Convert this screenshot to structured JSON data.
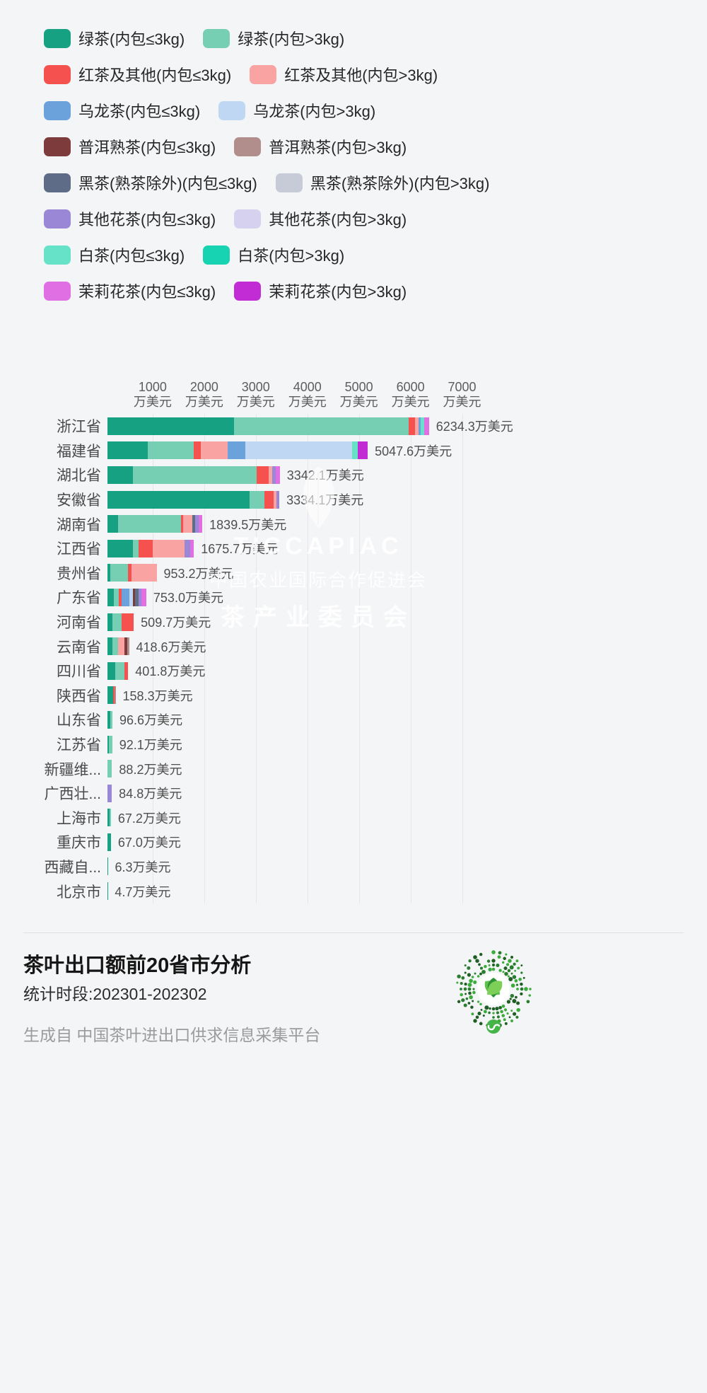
{
  "page": {
    "background": "#f4f5f7"
  },
  "legend": {
    "items": [
      {
        "key": "green_small",
        "label": "绿茶(内包≤3kg)",
        "color": "#15a182"
      },
      {
        "key": "green_large",
        "label": "绿茶(内包>3kg)",
        "color": "#76cfb3"
      },
      {
        "key": "red_small",
        "label": "红茶及其他(内包≤3kg)",
        "color": "#f5524f"
      },
      {
        "key": "red_large",
        "label": "红茶及其他(内包>3kg)",
        "color": "#f9a3a2"
      },
      {
        "key": "oolong_small",
        "label": "乌龙茶(内包≤3kg)",
        "color": "#6ca2dc"
      },
      {
        "key": "oolong_large",
        "label": "乌龙茶(内包>3kg)",
        "color": "#bfd7f3"
      },
      {
        "key": "puer_small",
        "label": "普洱熟茶(内包≤3kg)",
        "color": "#7d3b3c"
      },
      {
        "key": "puer_large",
        "label": "普洱熟茶(内包>3kg)",
        "color": "#b18e8c"
      },
      {
        "key": "dark_small",
        "label": "黑茶(熟茶除外)(内包≤3kg)",
        "color": "#5f6c87"
      },
      {
        "key": "dark_large",
        "label": "黑茶(熟茶除外)(内包>3kg)",
        "color": "#c7cbd8"
      },
      {
        "key": "flower_small",
        "label": "其他花茶(内包≤3kg)",
        "color": "#9a87d6"
      },
      {
        "key": "flower_large",
        "label": "其他花茶(内包>3kg)",
        "color": "#d6d1ef"
      },
      {
        "key": "white_small",
        "label": "白茶(内包≤3kg)",
        "color": "#66e2c8"
      },
      {
        "key": "white_large",
        "label": "白茶(内包>3kg)",
        "color": "#17d3b2"
      },
      {
        "key": "jasmine_small",
        "label": "茉莉花茶(内包≤3kg)",
        "color": "#e06fe3"
      },
      {
        "key": "jasmine_large",
        "label": "茉莉花茶(内包>3kg)",
        "color": "#c22cd5"
      }
    ]
  },
  "chart_data": {
    "type": "bar",
    "orientation": "horizontal",
    "stacked": true,
    "unit": "万美元",
    "legend_position": "top",
    "grid": true,
    "x_axis": {
      "position": "top",
      "max": 7500,
      "tick_values": [
        1000,
        2000,
        3000,
        4000,
        5000,
        6000,
        7000
      ],
      "tick_suffix": "万美元"
    },
    "rows": [
      {
        "name": "浙江省",
        "total": 6234.3,
        "label": "6234.3万美元",
        "segments": {
          "green_small": 2450,
          "green_large": 3390,
          "red_small": 120,
          "red_large": 70,
          "oolong_small": 40,
          "white_small": 70,
          "jasmine_small": 94.3
        }
      },
      {
        "name": "福建省",
        "total": 5047.6,
        "label": "5047.6万美元",
        "segments": {
          "green_small": 780,
          "green_large": 890,
          "red_small": 140,
          "red_large": 520,
          "oolong_small": 340,
          "oolong_large": 2080,
          "white_small": 100,
          "jasmine_large": 197.6
        }
      },
      {
        "name": "湖北省",
        "total": 3342.1,
        "label": "3342.1万美元",
        "segments": {
          "green_small": 500,
          "green_large": 2400,
          "red_small": 230,
          "red_large": 60,
          "flower_small": 80,
          "jasmine_small": 72.1
        }
      },
      {
        "name": "安徽省",
        "total": 3334.1,
        "label": "3334.1万美元",
        "segments": {
          "green_small": 2760,
          "green_large": 280,
          "red_small": 180,
          "red_large": 60,
          "flower_small": 54.1
        }
      },
      {
        "name": "湖南省",
        "total": 1839.5,
        "label": "1839.5万美元",
        "segments": {
          "green_small": 200,
          "green_large": 1230,
          "red_small": 40,
          "red_large": 170,
          "dark_small": 60,
          "flower_small": 70,
          "jasmine_small": 69.5
        }
      },
      {
        "name": "江西省",
        "total": 1675.7,
        "label": "1675.7万美元",
        "segments": {
          "green_small": 500,
          "green_large": 100,
          "red_small": 280,
          "red_large": 620,
          "flower_small": 100,
          "jasmine_small": 75.7
        }
      },
      {
        "name": "贵州省",
        "total": 953.2,
        "label": "953.2万美元",
        "segments": {
          "green_small": 60,
          "green_large": 340,
          "red_small": 60,
          "red_large": 493.2
        }
      },
      {
        "name": "广东省",
        "total": 753.0,
        "label": "753.0万美元",
        "segments": {
          "green_small": 120,
          "green_large": 100,
          "red_small": 60,
          "oolong_small": 140,
          "oolong_large": 80,
          "puer_small": 40,
          "dark_small": 60,
          "flower_small": 60,
          "jasmine_small": 93
        }
      },
      {
        "name": "河南省",
        "total": 509.7,
        "label": "509.7万美元",
        "segments": {
          "green_small": 90,
          "green_large": 180,
          "red_small": 239.7
        }
      },
      {
        "name": "云南省",
        "total": 418.6,
        "label": "418.6万美元",
        "segments": {
          "green_small": 90,
          "green_large": 120,
          "red_large": 120,
          "puer_small": 50,
          "puer_large": 38.6
        }
      },
      {
        "name": "四川省",
        "total": 401.8,
        "label": "401.8万美元",
        "segments": {
          "green_small": 150,
          "green_large": 180,
          "red_small": 71.8
        }
      },
      {
        "name": "陕西省",
        "total": 158.3,
        "label": "158.3万美元",
        "segments": {
          "green_small": 110,
          "red_small": 25,
          "puer_large": 23.3
        }
      },
      {
        "name": "山东省",
        "total": 96.6,
        "label": "96.6万美元",
        "segments": {
          "green_small": 60,
          "green_large": 36.6
        }
      },
      {
        "name": "江苏省",
        "total": 92.1,
        "label": "92.1万美元",
        "segments": {
          "green_small": 30,
          "green_large": 62.1
        }
      },
      {
        "name": "新疆维...",
        "total": 88.2,
        "label": "88.2万美元",
        "segments": {
          "green_large": 88.2
        }
      },
      {
        "name": "广西壮...",
        "total": 84.8,
        "label": "84.8万美元",
        "segments": {
          "flower_small": 84.8
        }
      },
      {
        "name": "上海市",
        "total": 67.2,
        "label": "67.2万美元",
        "segments": {
          "green_small": 40,
          "green_large": 27.2
        }
      },
      {
        "name": "重庆市",
        "total": 67.0,
        "label": "67.0万美元",
        "segments": {
          "green_small": 67
        }
      },
      {
        "name": "西藏自...",
        "total": 6.3,
        "label": "6.3万美元",
        "segments": {
          "green_small": 6.3
        }
      },
      {
        "name": "北京市",
        "total": 4.7,
        "label": "4.7万美元",
        "segments": {
          "green_small": 4.7
        }
      }
    ]
  },
  "watermark": {
    "line1": "TICCAPIAC",
    "line2": "中国农业国际合作促进会",
    "line3": "茶产业委员会"
  },
  "footer": {
    "title": "茶叶出口额前20省市分析",
    "period": "统计时段:202301-202302",
    "source": "生成自 中国茶叶进出口供求信息采集平台",
    "qr_color": "#3cab3c"
  }
}
